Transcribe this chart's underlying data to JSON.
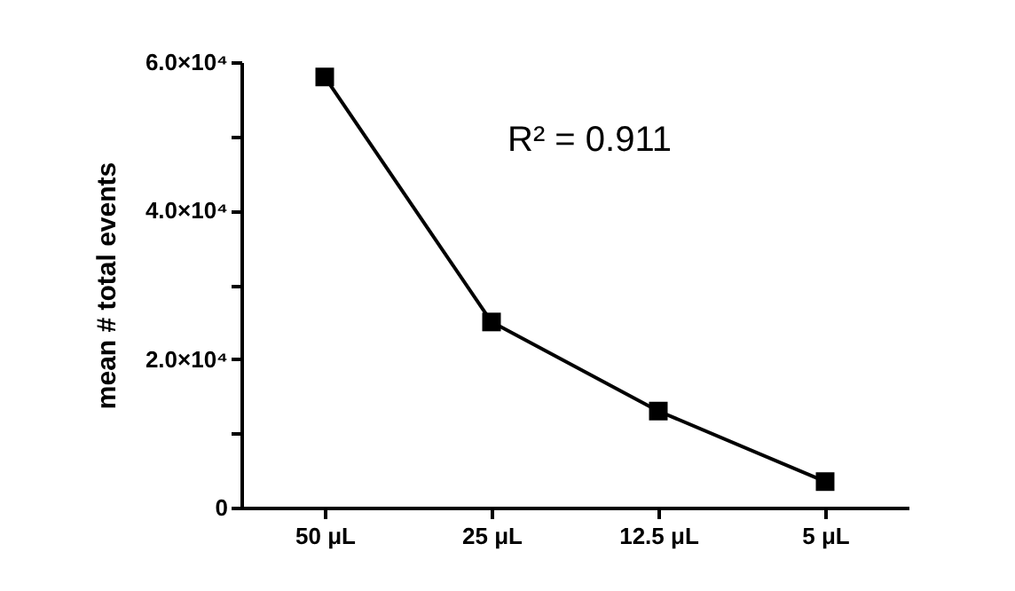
{
  "chart_data": {
    "type": "line",
    "ylabel": "mean # total events",
    "categories": [
      "50 μL",
      "25 μL",
      "12.5 μL",
      "5 μL"
    ],
    "series": [
      {
        "color": "#000000",
        "values": [
          58000,
          25000,
          13000,
          3500
        ]
      }
    ],
    "ylim": [
      0,
      60000
    ],
    "yticks": [
      {
        "value": 0,
        "label": "0"
      },
      {
        "value": 10000,
        "label": null
      },
      {
        "value": 20000,
        "label": "2.0×10⁴"
      },
      {
        "value": 30000,
        "label": null
      },
      {
        "value": 40000,
        "label": "4.0×10⁴"
      },
      {
        "value": 50000,
        "label": null
      },
      {
        "value": 60000,
        "label": "6.0×10⁴"
      }
    ],
    "annotations": [
      "R² = 0.911"
    ],
    "marker": "square",
    "line_style": "solid",
    "grid": false
  }
}
